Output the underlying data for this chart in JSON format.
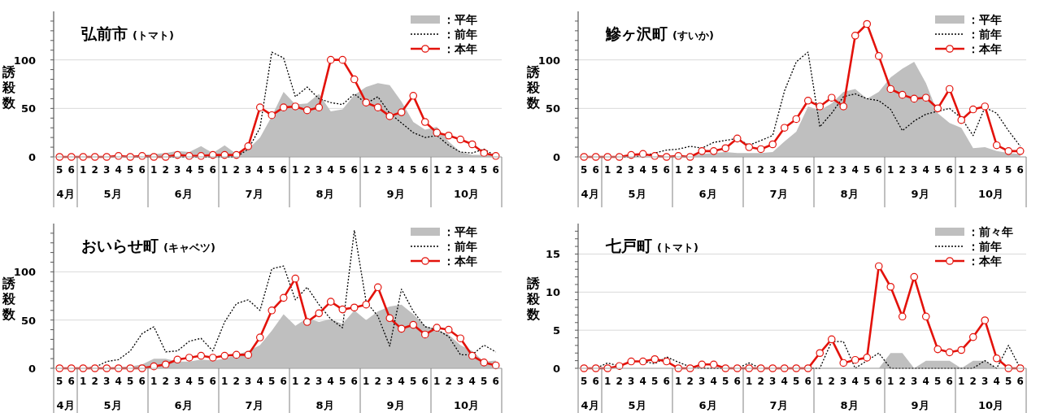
{
  "chart_data": [
    {
      "type": "line",
      "title": "弘前市",
      "subtitle": "(トマト)",
      "ylabel": "誘殺数",
      "annotations": [
        "4月",
        "5月",
        "6月",
        "7月",
        "8月",
        "9月",
        "10月"
      ],
      "categories": [
        "5",
        "6",
        "1",
        "2",
        "3",
        "4",
        "5",
        "6",
        "1",
        "2",
        "3",
        "4",
        "5",
        "6",
        "1",
        "2",
        "3",
        "4",
        "5",
        "6",
        "1",
        "2",
        "3",
        "4",
        "5",
        "6",
        "1",
        "2",
        "3",
        "4",
        "5",
        "6",
        "1",
        "2",
        "3",
        "4",
        "5",
        "6"
      ],
      "ylim": [
        0,
        150
      ],
      "yticks": [
        0,
        {
          "value": 10,
          "label": null
        },
        {
          "value": 20,
          "label": null
        },
        {
          "value": 30,
          "label": null
        },
        {
          "value": 40,
          "label": null
        },
        50,
        {
          "value": 60,
          "label": null
        },
        {
          "value": 70,
          "label": null
        },
        {
          "value": 80,
          "label": null
        },
        {
          "value": 90,
          "label": null
        },
        100,
        {
          "value": 110,
          "label": null
        },
        {
          "value": 120,
          "label": null
        },
        {
          "value": 130,
          "label": null
        },
        {
          "value": 140,
          "label": null
        }
      ],
      "grid": "y",
      "legend": "top right",
      "series": [
        {
          "name": "：平年",
          "type": "area",
          "color": "#bfbfbf",
          "values": [
            0,
            0,
            0,
            0,
            0,
            1,
            1,
            2,
            3,
            4,
            6,
            5,
            11,
            4,
            12,
            3,
            8,
            20,
            42,
            67,
            54,
            55,
            65,
            47,
            49,
            64,
            72,
            76,
            74,
            57,
            36,
            28,
            31,
            16,
            5,
            2,
            2,
            1
          ]
        },
        {
          "name": "：前年",
          "type": "line",
          "line_style": "dotted",
          "marker": "none",
          "color": "#000000",
          "values": [
            null,
            null,
            null,
            null,
            null,
            null,
            0,
            0,
            0,
            0,
            0,
            0,
            0,
            0,
            0,
            0,
            8,
            30,
            108,
            102,
            62,
            72,
            60,
            56,
            54,
            65,
            55,
            62,
            45,
            35,
            25,
            20,
            22,
            12,
            5,
            4,
            8,
            1
          ]
        },
        {
          "name": "：本年",
          "type": "line",
          "line_style": "solid",
          "marker": "circle",
          "color": "#e3120b",
          "values": [
            0,
            0,
            0,
            0,
            0,
            1,
            0,
            1,
            0,
            0,
            2,
            1,
            1,
            2,
            2,
            2,
            11,
            51,
            43,
            51,
            52,
            48,
            51,
            100,
            100,
            80,
            56,
            51,
            42,
            46,
            63,
            36,
            25,
            22,
            18,
            13,
            4,
            1
          ]
        }
      ]
    },
    {
      "type": "line",
      "title": "鰺ヶ沢町",
      "subtitle": "(すいか)",
      "ylabel": "誘殺数",
      "annotations": [
        "4月",
        "5月",
        "6月",
        "7月",
        "8月",
        "9月",
        "10月"
      ],
      "categories": [
        "5",
        "6",
        "1",
        "2",
        "3",
        "4",
        "5",
        "6",
        "1",
        "2",
        "3",
        "4",
        "5",
        "6",
        "1",
        "2",
        "3",
        "4",
        "5",
        "6",
        "1",
        "2",
        "3",
        "4",
        "5",
        "6",
        "1",
        "2",
        "3",
        "4",
        "5",
        "6",
        "1",
        "2",
        "3",
        "4",
        "5",
        "6"
      ],
      "ylim": [
        0,
        150
      ],
      "yticks": [
        0,
        {
          "value": 10,
          "label": null
        },
        {
          "value": 20,
          "label": null
        },
        {
          "value": 30,
          "label": null
        },
        {
          "value": 40,
          "label": null
        },
        50,
        {
          "value": 60,
          "label": null
        },
        {
          "value": 70,
          "label": null
        },
        {
          "value": 80,
          "label": null
        },
        {
          "value": 90,
          "label": null
        },
        100,
        {
          "value": 110,
          "label": null
        },
        {
          "value": 120,
          "label": null
        },
        {
          "value": 130,
          "label": null
        },
        {
          "value": 140,
          "label": null
        }
      ],
      "grid": "y",
      "legend": "top right",
      "series": [
        {
          "name": "：平年",
          "type": "area",
          "color": "#bfbfbf",
          "values": [
            0,
            0,
            0,
            0,
            0,
            0,
            0,
            0,
            0,
            1,
            3,
            4,
            5,
            4,
            4,
            4,
            5,
            16,
            26,
            52,
            48,
            55,
            67,
            70,
            60,
            67,
            82,
            91,
            98,
            76,
            45,
            35,
            30,
            9,
            10,
            6,
            4,
            3
          ]
        },
        {
          "name": "：前年",
          "type": "line",
          "line_style": "dotted",
          "marker": "none",
          "color": "#000000",
          "values": [
            null,
            null,
            0,
            0,
            0,
            1,
            4,
            7,
            8,
            11,
            9,
            15,
            17,
            19,
            12,
            17,
            22,
            68,
            98,
            108,
            31,
            45,
            62,
            65,
            60,
            58,
            49,
            27,
            37,
            44,
            47,
            50,
            40,
            22,
            51,
            45,
            27,
            11
          ]
        },
        {
          "name": "：本年",
          "type": "line",
          "line_style": "solid",
          "marker": "circle",
          "color": "#e3120b",
          "values": [
            0,
            0,
            0,
            0,
            2,
            3,
            1,
            0,
            1,
            0,
            6,
            6,
            9,
            19,
            10,
            8,
            13,
            30,
            39,
            58,
            52,
            61,
            52,
            125,
            137,
            104,
            70,
            64,
            60,
            61,
            50,
            70,
            38,
            49,
            52,
            12,
            6,
            6
          ]
        }
      ]
    },
    {
      "type": "line",
      "title": "おいらせ町",
      "subtitle": "(キャベツ)",
      "ylabel": "誘殺数",
      "annotations": [
        "4月",
        "5月",
        "6月",
        "7月",
        "8月",
        "9月",
        "10月"
      ],
      "categories": [
        "5",
        "6",
        "1",
        "2",
        "3",
        "4",
        "5",
        "6",
        "1",
        "2",
        "3",
        "4",
        "5",
        "6",
        "1",
        "2",
        "3",
        "4",
        "5",
        "6",
        "1",
        "2",
        "3",
        "4",
        "5",
        "6",
        "1",
        "2",
        "3",
        "4",
        "5",
        "6",
        "1",
        "2",
        "3",
        "4",
        "5",
        "6"
      ],
      "ylim": [
        0,
        150
      ],
      "yticks": [
        0,
        {
          "value": 10,
          "label": null
        },
        {
          "value": 20,
          "label": null
        },
        {
          "value": 30,
          "label": null
        },
        {
          "value": 40,
          "label": null
        },
        50,
        {
          "value": 60,
          "label": null
        },
        {
          "value": 70,
          "label": null
        },
        {
          "value": 80,
          "label": null
        },
        {
          "value": 90,
          "label": null
        },
        100,
        {
          "value": 110,
          "label": null
        },
        {
          "value": 120,
          "label": null
        },
        {
          "value": 130,
          "label": null
        },
        {
          "value": 140,
          "label": null
        }
      ],
      "grid": "y",
      "legend": "top right",
      "series": [
        {
          "name": "：平年",
          "type": "area",
          "color": "#bfbfbf",
          "values": [
            0,
            0,
            0,
            0,
            0,
            1,
            2,
            4,
            10,
            10,
            7,
            7,
            9,
            8,
            10,
            14,
            18,
            24,
            39,
            56,
            44,
            52,
            48,
            51,
            46,
            60,
            50,
            59,
            64,
            66,
            56,
            44,
            40,
            35,
            24,
            18,
            7,
            8
          ]
        },
        {
          "name": "：前年",
          "type": "line",
          "line_style": "dotted",
          "marker": "none",
          "color": "#000000",
          "values": [
            null,
            null,
            0,
            1,
            7,
            9,
            18,
            36,
            43,
            17,
            18,
            28,
            31,
            18,
            48,
            67,
            71,
            60,
            103,
            106,
            71,
            84,
            66,
            51,
            42,
            143,
            69,
            54,
            23,
            82,
            59,
            43,
            40,
            33,
            14,
            14,
            24,
            17
          ]
        },
        {
          "name": "：本年",
          "type": "line",
          "line_style": "solid",
          "marker": "circle",
          "color": "#e3120b",
          "values": [
            0,
            0,
            0,
            0,
            0,
            0,
            0,
            0,
            2,
            4,
            9,
            11,
            13,
            11,
            13,
            14,
            14,
            32,
            60,
            73,
            93,
            48,
            57,
            69,
            61,
            63,
            66,
            84,
            52,
            41,
            45,
            35,
            42,
            40,
            31,
            13,
            6,
            3
          ]
        }
      ]
    },
    {
      "type": "line",
      "title": "七戸町",
      "subtitle": "(トマト)",
      "ylabel": "誘殺数",
      "annotations": [
        "4月",
        "5月",
        "6月",
        "7月",
        "8月",
        "9月",
        "10月"
      ],
      "categories": [
        "5",
        "6",
        "1",
        "2",
        "3",
        "4",
        "5",
        "6",
        "1",
        "2",
        "3",
        "4",
        "5",
        "6",
        "1",
        "2",
        "3",
        "4",
        "5",
        "6",
        "1",
        "2",
        "3",
        "4",
        "5",
        "6",
        "1",
        "2",
        "3",
        "4",
        "5",
        "6",
        "1",
        "2",
        "3",
        "4",
        "5",
        "6"
      ],
      "ylim": [
        0,
        19
      ],
      "yticks": [
        0,
        {
          "value": 1,
          "label": null
        },
        {
          "value": 2,
          "label": null
        },
        {
          "value": 3,
          "label": null
        },
        {
          "value": 4,
          "label": null
        },
        5,
        {
          "value": 6,
          "label": null
        },
        {
          "value": 7,
          "label": null
        },
        {
          "value": 8,
          "label": null
        },
        {
          "value": 9,
          "label": null
        },
        10,
        {
          "value": 11,
          "label": null
        },
        {
          "value": 12,
          "label": null
        },
        {
          "value": 13,
          "label": null
        },
        {
          "value": 14,
          "label": null
        },
        15,
        {
          "value": 16,
          "label": null
        },
        {
          "value": 17,
          "label": null
        },
        {
          "value": 18,
          "label": null
        }
      ],
      "grid": "y",
      "legend": "top right",
      "series": [
        {
          "name": "：前々年",
          "type": "area",
          "color": "#bfbfbf",
          "values": [
            0,
            0,
            0,
            0,
            0,
            0,
            0,
            0,
            0,
            0,
            0,
            0,
            0,
            0,
            0,
            0,
            0,
            0,
            0,
            0,
            0,
            0,
            0,
            0,
            0,
            0,
            2,
            2,
            0,
            1,
            1,
            1,
            0,
            1,
            1,
            0,
            0,
            0
          ]
        },
        {
          "name": "：前年",
          "type": "line",
          "line_style": "dotted",
          "marker": "none",
          "color": "#000000",
          "values": [
            0,
            0,
            0.7,
            0.3,
            null,
            0.9,
            0.6,
            1.5,
            0.8,
            0.2,
            0,
            0,
            0,
            0,
            0.7,
            0,
            0,
            0,
            0,
            0,
            0,
            3.5,
            3.5,
            0,
            1,
            2,
            0,
            0,
            0,
            0,
            0,
            0,
            0,
            0,
            1,
            0,
            3,
            0
          ]
        },
        {
          "name": "：本年",
          "type": "line",
          "line_style": "solid",
          "marker": "circle",
          "color": "#e3120b",
          "values": [
            0,
            0,
            0,
            0.3,
            0.9,
            0.9,
            1.2,
            0.9,
            0,
            0,
            0.5,
            0.5,
            0,
            0,
            0,
            0,
            0,
            0,
            0,
            0,
            2.0,
            3.8,
            0.7,
            1.1,
            1.4,
            13.4,
            10.7,
            6.8,
            12.0,
            6.8,
            2.5,
            2.1,
            2.4,
            4.1,
            6.3,
            1.3,
            0,
            0
          ]
        }
      ]
    }
  ]
}
